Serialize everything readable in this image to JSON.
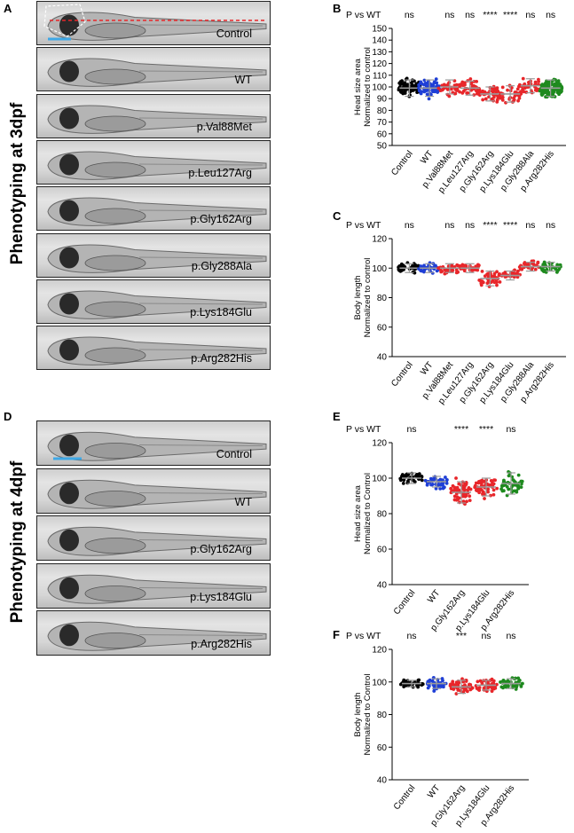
{
  "panels": {
    "A": "A",
    "B": "B",
    "C": "C",
    "D": "D",
    "E": "E",
    "F": "F"
  },
  "side_titles": {
    "top": "Phenotyping at 3dpf",
    "bottom": "Phenotyping at 4dpf"
  },
  "images_3dpf": [
    "Control",
    "WT",
    "p.Val88Met",
    "p.Leu127Arg",
    "p.Gly162Arg",
    "p.Gly288Ala",
    "p.Lys184Glu",
    "p.Arg282His"
  ],
  "images_4dpf": [
    "Control",
    "WT",
    "p.Gly162Arg",
    "p.Lys184Glu",
    "p.Arg282His"
  ],
  "colors": {
    "control": "#000000",
    "wt": "#1f3fd6",
    "mutant": "#e8262a",
    "arg282his": "#1e8a1e",
    "scale_bar": "#3ea8e6",
    "dashed_line": "#e8262a"
  },
  "chart_data": [
    {
      "id": "B",
      "type": "scatter",
      "stat_label": "P vs WT",
      "categories": [
        "Control",
        "WT",
        "p.Val88Met",
        "p.Leu127Arg",
        "p.Gly162Arg",
        "p.Lys184Glu",
        "p.Gly288Ala",
        "p.Arg282His"
      ],
      "significance": [
        "ns",
        "",
        "ns",
        "ns",
        "****",
        "****",
        "ns",
        "ns"
      ],
      "ylabel": [
        "Head size area",
        "Normalized to control"
      ],
      "ylim": [
        50,
        150
      ],
      "yticks": [
        50,
        60,
        70,
        80,
        90,
        100,
        110,
        120,
        130,
        140,
        150
      ],
      "means": [
        99,
        99,
        100,
        99,
        94,
        94,
        101,
        99
      ],
      "spread": [
        7,
        7,
        6,
        6,
        6,
        7,
        6,
        7
      ],
      "n": [
        70,
        60,
        35,
        40,
        45,
        35,
        35,
        110
      ]
    },
    {
      "id": "C",
      "type": "scatter",
      "stat_label": "P vs WT",
      "categories": [
        "Control",
        "WT",
        "p.Val88Met",
        "p.Leu127Arg",
        "p.Gly162Arg",
        "p.Lys184Glu",
        "p.Gly288Ala",
        "p.Arg282His"
      ],
      "significance": [
        "ns",
        "",
        "ns",
        "ns",
        "****",
        "****",
        "ns",
        "ns"
      ],
      "ylabel": [
        "Body length",
        "Normalized to control"
      ],
      "ylim": [
        40,
        120
      ],
      "yticks": [
        40,
        60,
        80,
        100,
        120
      ],
      "means": [
        100,
        100,
        100,
        100,
        93,
        95,
        101,
        101
      ],
      "spread": [
        3,
        3,
        3,
        3,
        5,
        3,
        3,
        3
      ],
      "n": [
        40,
        35,
        30,
        30,
        40,
        25,
        30,
        40
      ]
    },
    {
      "id": "E",
      "type": "scatter",
      "stat_label": "P vs WT",
      "categories": [
        "Control",
        "WT",
        "p.Gly162Arg",
        "p.Lys184Glu",
        "p.Arg282His"
      ],
      "significance": [
        "ns",
        "",
        "****",
        "****",
        "ns"
      ],
      "ylabel": [
        "Head size area",
        "Normalized to Control"
      ],
      "ylim": [
        40,
        120
      ],
      "yticks": [
        40,
        60,
        80,
        100,
        120
      ],
      "means": [
        100,
        98,
        92,
        95,
        97
      ],
      "spread": [
        3,
        3,
        6,
        5,
        6
      ],
      "n": [
        40,
        40,
        60,
        50,
        45
      ]
    },
    {
      "id": "F",
      "type": "scatter",
      "stat_label": "P vs WT",
      "categories": [
        "Control",
        "WT",
        "p.Gly162Arg",
        "p.Lys184Glu",
        "p.Arg282His"
      ],
      "significance": [
        "ns",
        "",
        "***",
        "ns",
        "ns"
      ],
      "ylabel": [
        "Body length",
        "Normalized to Control"
      ],
      "ylim": [
        40,
        120
      ],
      "yticks": [
        40,
        60,
        80,
        100,
        120
      ],
      "means": [
        99,
        99,
        97,
        98,
        99
      ],
      "spread": [
        2,
        3,
        4,
        3,
        3
      ],
      "n": [
        40,
        40,
        55,
        45,
        45
      ]
    }
  ]
}
